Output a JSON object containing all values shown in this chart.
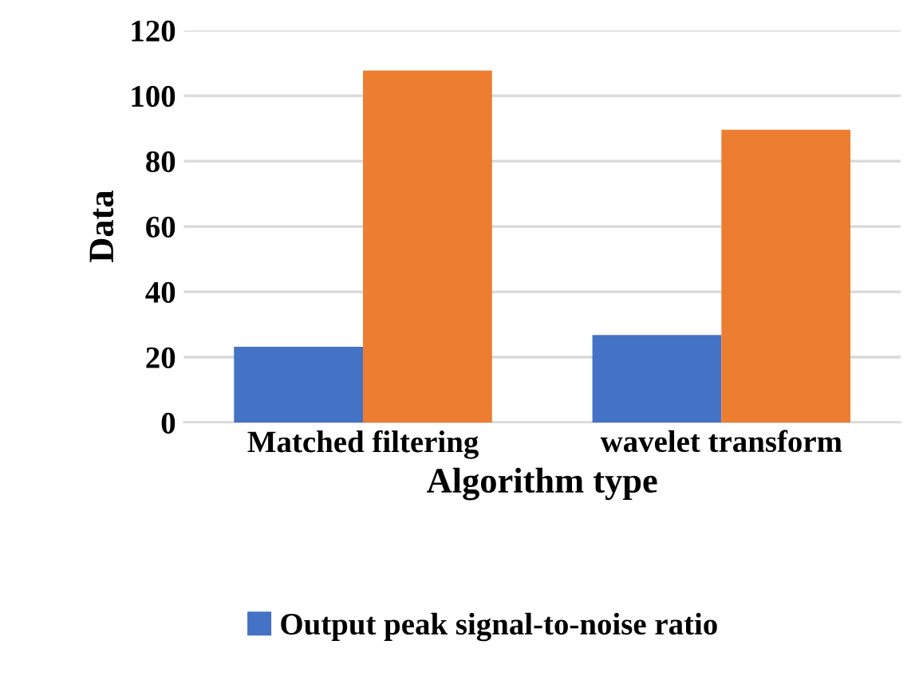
{
  "chart_data": {
    "type": "bar",
    "xlabel": "Algorithm type",
    "ylabel": "Data",
    "categories": [
      "Matched filtering",
      "wavelet transform"
    ],
    "series": [
      {
        "name": "Output peak signal-to-noise ratio",
        "color": "#4472c4",
        "values": [
          23.2,
          26.8
        ]
      },
      {
        "color": "#ed7d31",
        "values": [
          107.7,
          89.6
        ]
      }
    ],
    "ylim": [
      0,
      120
    ],
    "yticks": [
      0,
      20,
      40,
      60,
      80,
      100,
      120
    ],
    "grid": "y",
    "legend": "bottom"
  }
}
